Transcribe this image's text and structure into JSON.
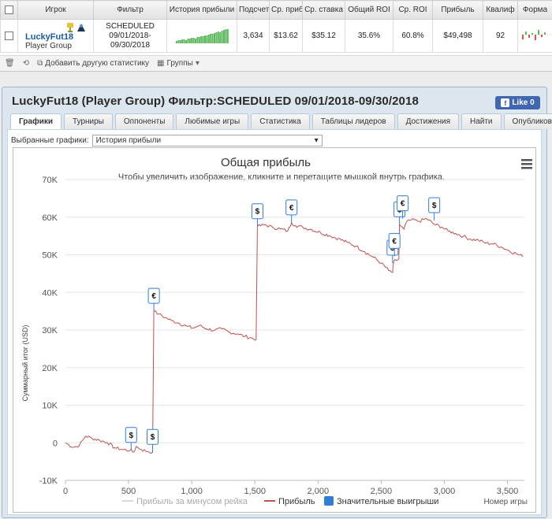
{
  "stats_table": {
    "headers": [
      "Игрок",
      "Фильтр",
      "История прибыли",
      "Подсчет",
      "Ср. приб",
      "Ср. ставка",
      "Общий ROI",
      "Ср. ROI",
      "Прибыль",
      "Квалиф",
      "Форма"
    ],
    "row": {
      "player_name": "LuckyFut18",
      "player_group": "Player Group",
      "filter_line1": "SCHEDULED",
      "filter_line2": "09/01/2018-",
      "filter_line3": "09/30/2018",
      "count": "3,634",
      "avg_profit": "$13.62",
      "avg_stake": "$35.12",
      "total_roi": "35.6%",
      "avg_roi": "60.8%",
      "profit": "$49,498",
      "qualif": "92"
    }
  },
  "toolbar": {
    "add_stat_label": "Добавить другую статистику",
    "groups_label": "Группы"
  },
  "panel": {
    "title": "LuckyFut18 (Player Group) Фильтр:SCHEDULED 09/01/2018-09/30/2018",
    "like_label": "Like 0",
    "tabs": [
      "Графики",
      "Турниры",
      "Оппоненты",
      "Любимые игры",
      "Статистика",
      "Таблицы лидеров",
      "Достижения",
      "Найти",
      "Опубликовать"
    ],
    "active_tab": "Графики",
    "selector_label": "Выбранные графики:",
    "selector_value": "История прибыли"
  },
  "chart_data": {
    "type": "line",
    "title": "Общая прибыль",
    "subtitle": "Чтобы увеличить изображение, кликните и перетащите мышкой внутрь графика.",
    "xlabel": "Номер игры",
    "ylabel": "Суммарный итог (USD)",
    "xlim": [
      0,
      3634
    ],
    "ylim": [
      -10000,
      70000
    ],
    "yticks": [
      "-10K",
      "0",
      "10K",
      "20K",
      "30K",
      "40K",
      "50K",
      "60K",
      "70K"
    ],
    "yticks_values": [
      -10000,
      0,
      10000,
      20000,
      30000,
      40000,
      50000,
      60000,
      70000
    ],
    "xticks": [
      "0",
      "500",
      "1,000",
      "1,500",
      "2,000",
      "2,500",
      "3,000",
      "3,500"
    ],
    "xticks_values": [
      0,
      500,
      1000,
      1500,
      2000,
      2500,
      3000,
      3500
    ],
    "legend": [
      "Прибыль за минусом рейка",
      "Прибыль",
      "Значительные выигрыши"
    ],
    "legend_colors": [
      "#d8d8d8",
      "#c0504d",
      "#2f7ed8"
    ],
    "series": [
      {
        "name": "Прибыль",
        "color": "#c0504d",
        "points": [
          [
            0,
            0
          ],
          [
            60,
            -1200
          ],
          [
            110,
            -700
          ],
          [
            160,
            1800
          ],
          [
            210,
            1200
          ],
          [
            270,
            700
          ],
          [
            330,
            100
          ],
          [
            390,
            -1300
          ],
          [
            450,
            -1800
          ],
          [
            510,
            -2000
          ],
          [
            540,
            -2500
          ],
          [
            560,
            -1000
          ],
          [
            600,
            -1800
          ],
          [
            650,
            -2300
          ],
          [
            690,
            -2500
          ],
          [
            700,
            35000
          ],
          [
            740,
            34200
          ],
          [
            790,
            33300
          ],
          [
            840,
            32500
          ],
          [
            900,
            31800
          ],
          [
            960,
            31000
          ],
          [
            1010,
            30500
          ],
          [
            1060,
            31200
          ],
          [
            1120,
            30300
          ],
          [
            1180,
            29900
          ],
          [
            1240,
            30300
          ],
          [
            1300,
            29400
          ],
          [
            1360,
            29000
          ],
          [
            1420,
            28300
          ],
          [
            1480,
            27800
          ],
          [
            1510,
            27500
          ],
          [
            1520,
            57500
          ],
          [
            1580,
            58000
          ],
          [
            1640,
            57300
          ],
          [
            1700,
            56900
          ],
          [
            1760,
            56300
          ],
          [
            1790,
            58500
          ],
          [
            1820,
            57800
          ],
          [
            1880,
            57300
          ],
          [
            1950,
            56700
          ],
          [
            2020,
            55900
          ],
          [
            2090,
            55100
          ],
          [
            2160,
            54300
          ],
          [
            2230,
            53300
          ],
          [
            2300,
            52300
          ],
          [
            2370,
            50800
          ],
          [
            2440,
            49300
          ],
          [
            2500,
            47800
          ],
          [
            2560,
            45800
          ],
          [
            2590,
            45300
          ],
          [
            2600,
            48300
          ],
          [
            2620,
            48500
          ],
          [
            2640,
            48900
          ],
          [
            2645,
            58000
          ],
          [
            2660,
            57500
          ],
          [
            2680,
            56800
          ],
          [
            2700,
            58700
          ],
          [
            2740,
            59300
          ],
          [
            2800,
            58900
          ],
          [
            2860,
            59600
          ],
          [
            2920,
            58100
          ],
          [
            2980,
            57400
          ],
          [
            3030,
            56300
          ],
          [
            3090,
            55700
          ],
          [
            3150,
            54900
          ],
          [
            3210,
            54100
          ],
          [
            3270,
            53900
          ],
          [
            3330,
            53100
          ],
          [
            3390,
            52900
          ],
          [
            3450,
            52100
          ],
          [
            3510,
            51100
          ],
          [
            3570,
            50300
          ],
          [
            3620,
            49500
          ]
        ]
      }
    ],
    "significant_wins": [
      {
        "x": 520,
        "y": -2000,
        "symbol": "$"
      },
      {
        "x": 690,
        "y": -2500,
        "symbol": "$"
      },
      {
        "x": 700,
        "y": 35000,
        "symbol": "€"
      },
      {
        "x": 1520,
        "y": 57500,
        "symbol": "$"
      },
      {
        "x": 1790,
        "y": 58500,
        "symbol": "€"
      },
      {
        "x": 2590,
        "y": 47800,
        "symbol": "$"
      },
      {
        "x": 2605,
        "y": 49600,
        "symbol": "€"
      },
      {
        "x": 2645,
        "y": 58000,
        "symbol": "$"
      },
      {
        "x": 2670,
        "y": 59600,
        "symbol": "€"
      },
      {
        "x": 2920,
        "y": 59100,
        "symbol": "$"
      }
    ]
  }
}
